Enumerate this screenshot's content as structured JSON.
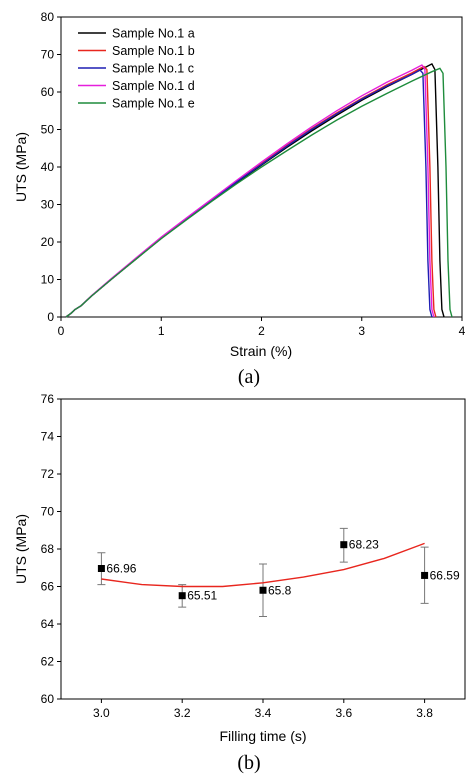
{
  "chart_data": [
    {
      "type": "line",
      "panel_label": "(a)",
      "title": "",
      "xlabel": "Strain (%)",
      "ylabel": "UTS (MPa)",
      "xlim": [
        0,
        4
      ],
      "ylim": [
        0,
        80
      ],
      "xticks": [
        0,
        1,
        2,
        3,
        4
      ],
      "yticks": [
        0,
        10,
        20,
        30,
        40,
        50,
        60,
        70,
        80
      ],
      "grid": false,
      "legend": "top-left",
      "series": [
        {
          "name": "Sample No.1 a",
          "color": "#000000",
          "points": [
            [
              0.05,
              0
            ],
            [
              0.1,
              1
            ],
            [
              0.14,
              2
            ],
            [
              0.2,
              3
            ],
            [
              0.3,
              5.5
            ],
            [
              0.5,
              10
            ],
            [
              0.75,
              15.5
            ],
            [
              1.0,
              21
            ],
            [
              1.25,
              26
            ],
            [
              1.5,
              31
            ],
            [
              1.75,
              35.8
            ],
            [
              2.0,
              40.5
            ],
            [
              2.25,
              45.2
            ],
            [
              2.5,
              49.6
            ],
            [
              2.75,
              53.8
            ],
            [
              3.0,
              57.8
            ],
            [
              3.25,
              61.4
            ],
            [
              3.5,
              64.7
            ],
            [
              3.65,
              66.8
            ],
            [
              3.7,
              67.5
            ],
            [
              3.73,
              66
            ],
            [
              3.76,
              40
            ],
            [
              3.78,
              15
            ],
            [
              3.8,
              2
            ],
            [
              3.82,
              0
            ]
          ]
        },
        {
          "name": "Sample No.1 b",
          "color": "#e8261e",
          "points": [
            [
              0.05,
              0
            ],
            [
              0.1,
              1
            ],
            [
              0.14,
              2
            ],
            [
              0.2,
              3
            ],
            [
              0.3,
              5.5
            ],
            [
              0.5,
              10
            ],
            [
              0.75,
              15.6
            ],
            [
              1.0,
              21.2
            ],
            [
              1.25,
              26.2
            ],
            [
              1.5,
              31.2
            ],
            [
              1.75,
              36.1
            ],
            [
              2.0,
              40.9
            ],
            [
              2.25,
              45.7
            ],
            [
              2.5,
              50.2
            ],
            [
              2.75,
              54.4
            ],
            [
              3.0,
              58.3
            ],
            [
              3.25,
              61.9
            ],
            [
              3.5,
              65.1
            ],
            [
              3.62,
              66.8
            ],
            [
              3.65,
              66
            ],
            [
              3.68,
              40
            ],
            [
              3.7,
              15
            ],
            [
              3.72,
              2
            ],
            [
              3.74,
              0
            ]
          ]
        },
        {
          "name": "Sample No.1 c",
          "color": "#1f1fb4",
          "points": [
            [
              0.05,
              0
            ],
            [
              0.1,
              1
            ],
            [
              0.14,
              2
            ],
            [
              0.2,
              3
            ],
            [
              0.3,
              5.5
            ],
            [
              0.5,
              10
            ],
            [
              0.75,
              15.6
            ],
            [
              1.0,
              21.1
            ],
            [
              1.25,
              26.2
            ],
            [
              1.5,
              31.1
            ],
            [
              1.75,
              36.0
            ],
            [
              2.0,
              40.7
            ],
            [
              2.25,
              45.5
            ],
            [
              2.5,
              50.0
            ],
            [
              2.75,
              54.2
            ],
            [
              3.0,
              58.1
            ],
            [
              3.25,
              61.6
            ],
            [
              3.5,
              64.7
            ],
            [
              3.58,
              65.9
            ],
            [
              3.61,
              65
            ],
            [
              3.64,
              40
            ],
            [
              3.66,
              15
            ],
            [
              3.68,
              2
            ],
            [
              3.7,
              0
            ]
          ]
        },
        {
          "name": "Sample No.1 d",
          "color": "#e61fdc",
          "points": [
            [
              0.05,
              0
            ],
            [
              0.1,
              1
            ],
            [
              0.14,
              2
            ],
            [
              0.2,
              3
            ],
            [
              0.3,
              5.6
            ],
            [
              0.5,
              10.2
            ],
            [
              0.75,
              15.8
            ],
            [
              1.0,
              21.3
            ],
            [
              1.25,
              26.4
            ],
            [
              1.5,
              31.4
            ],
            [
              1.75,
              36.4
            ],
            [
              2.0,
              41.3
            ],
            [
              2.25,
              46.1
            ],
            [
              2.5,
              50.7
            ],
            [
              2.75,
              55.0
            ],
            [
              3.0,
              59.0
            ],
            [
              3.25,
              62.6
            ],
            [
              3.5,
              65.8
            ],
            [
              3.6,
              67.2
            ],
            [
              3.63,
              66
            ],
            [
              3.66,
              40
            ],
            [
              3.68,
              15
            ],
            [
              3.7,
              2
            ],
            [
              3.72,
              0
            ]
          ]
        },
        {
          "name": "Sample No.1 e",
          "color": "#1e8c3c",
          "points": [
            [
              0.05,
              0
            ],
            [
              0.1,
              1
            ],
            [
              0.14,
              2
            ],
            [
              0.2,
              3
            ],
            [
              0.3,
              5.5
            ],
            [
              0.5,
              10
            ],
            [
              0.75,
              15.5
            ],
            [
              1.0,
              20.9
            ],
            [
              1.25,
              25.9
            ],
            [
              1.5,
              30.8
            ],
            [
              1.75,
              35.5
            ],
            [
              2.0,
              40.0
            ],
            [
              2.25,
              44.3
            ],
            [
              2.5,
              48.5
            ],
            [
              2.75,
              52.5
            ],
            [
              3.0,
              56.2
            ],
            [
              3.25,
              59.6
            ],
            [
              3.5,
              62.9
            ],
            [
              3.7,
              65.4
            ],
            [
              3.78,
              66.3
            ],
            [
              3.81,
              65
            ],
            [
              3.84,
              40
            ],
            [
              3.86,
              15
            ],
            [
              3.88,
              2
            ],
            [
              3.9,
              0
            ]
          ]
        }
      ]
    },
    {
      "type": "scatter",
      "panel_label": "(b)",
      "title": "",
      "xlabel": "Filling time (s)",
      "ylabel": "UTS (MPa)",
      "xlim": [
        2.9,
        3.9
      ],
      "ylim": [
        60,
        76
      ],
      "xticks": [
        3.0,
        3.2,
        3.4,
        3.6,
        3.8
      ],
      "yticks": [
        60,
        62,
        64,
        66,
        68,
        70,
        72,
        74,
        76
      ],
      "grid": false,
      "legend": "none",
      "points": {
        "x": [
          3.0,
          3.2,
          3.4,
          3.6,
          3.8
        ],
        "y": [
          66.96,
          65.51,
          65.8,
          68.23,
          66.59
        ],
        "labels": [
          "66.96",
          "65.51",
          "65.8",
          "68.23",
          "66.59"
        ],
        "err_low": [
          66.1,
          64.9,
          64.4,
          67.3,
          65.1
        ],
        "err_high": [
          67.8,
          66.1,
          67.2,
          69.1,
          68.1
        ],
        "color": "#000000"
      },
      "fit_line": {
        "color": "#e8261e",
        "x": [
          3.0,
          3.1,
          3.2,
          3.3,
          3.4,
          3.5,
          3.6,
          3.7,
          3.8
        ],
        "y": [
          66.4,
          66.1,
          66.0,
          66.0,
          66.2,
          66.5,
          66.9,
          67.5,
          68.3
        ]
      }
    }
  ]
}
